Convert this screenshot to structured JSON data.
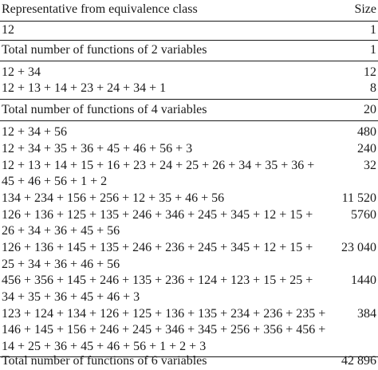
{
  "table": {
    "header": {
      "representative": "Representative from equivalence class",
      "size": "Size"
    },
    "rows": [
      {
        "rep": "12",
        "size": "1"
      },
      {
        "rep": "Total number of functions of 2 variables",
        "size": "1"
      },
      {
        "rep": "12 + 34",
        "size": "12"
      },
      {
        "rep": "12 + 13 + 14 + 23 + 24 + 34 + 1",
        "size": "8"
      },
      {
        "rep": "Total number of functions of 4 variables",
        "size": "20"
      },
      {
        "rep": "12 + 34 + 56",
        "size": "480"
      },
      {
        "rep": "12 + 34 + 35 + 36 + 45 + 46 + 56 + 3",
        "size": "240"
      },
      {
        "rep": "12 + 13 + 14 + 15 + 16 + 23 + 24 + 25 + 26 + 34 + 35 + 36 +",
        "size": "32"
      },
      {
        "rep": "45 + 46 + 56 + 1 + 2",
        "size": ""
      },
      {
        "rep": "134 + 234 + 156 + 256 + 12 + 35 + 46 + 56",
        "size": "11 520"
      },
      {
        "rep": "126 + 136 + 125 + 135 + 246 + 346 + 245 + 345 + 12 + 15 +",
        "size": "5760"
      },
      {
        "rep": "26 + 34 + 36 + 45 + 56",
        "size": ""
      },
      {
        "rep": "126 + 136 + 145 + 135 + 246 + 236 + 245 + 345 + 12 + 15 +",
        "size": "23 040"
      },
      {
        "rep": "25 + 34 + 36 + 46 + 56",
        "size": ""
      },
      {
        "rep": "456 + 356 + 145 + 246 + 135 + 236 + 124 + 123 + 15 + 25 +",
        "size": "1440"
      },
      {
        "rep": "34 + 35 + 36 + 45 + 46 + 3",
        "size": ""
      },
      {
        "rep": "123 + 124 + 134 + 126 + 125 + 136 + 135 + 234 + 236 + 235 +",
        "size": "384"
      },
      {
        "rep": "146 + 145 + 156 + 246 + 245 + 346 + 345 + 256 + 356 + 456 +",
        "size": ""
      },
      {
        "rep": "14 + 25 + 36 + 45 + 46 + 56 + 1 + 2 + 3",
        "size": ""
      },
      {
        "rep": "Total number of functions of 6 variables",
        "size": "42 896"
      }
    ]
  }
}
